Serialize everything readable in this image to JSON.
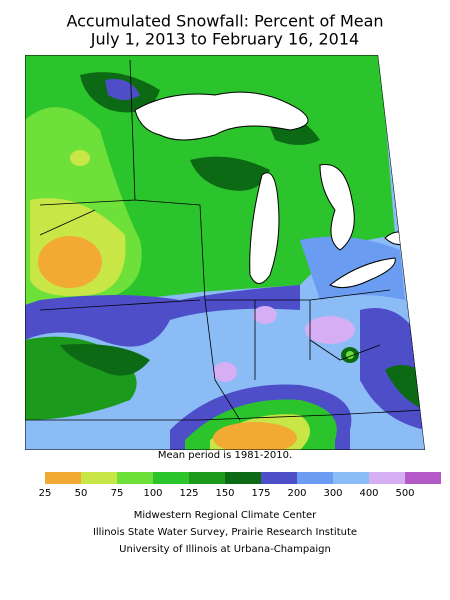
{
  "title": [
    "Accumulated Snowfall: Percent of Mean",
    "July 1, 2013 to February 16, 2014"
  ],
  "note": "Mean period is 1981-2010.",
  "legend": {
    "ticks": [
      25,
      50,
      75,
      100,
      125,
      150,
      175,
      200,
      300,
      400,
      500
    ],
    "colors": [
      "#f2aa34",
      "#c8e646",
      "#6ee03a",
      "#2cc42c",
      "#1c9a1c",
      "#0c6a14",
      "#4e4ec8",
      "#6a9cf2",
      "#8cbcf6",
      "#d6aef4",
      "#b45ac8"
    ]
  },
  "credits": [
    "Midwestern Regional Climate Center",
    "Illinois State Water Survey, Prairie Research Institute",
    "University of Illinois at Urbana-Champaign"
  ]
}
